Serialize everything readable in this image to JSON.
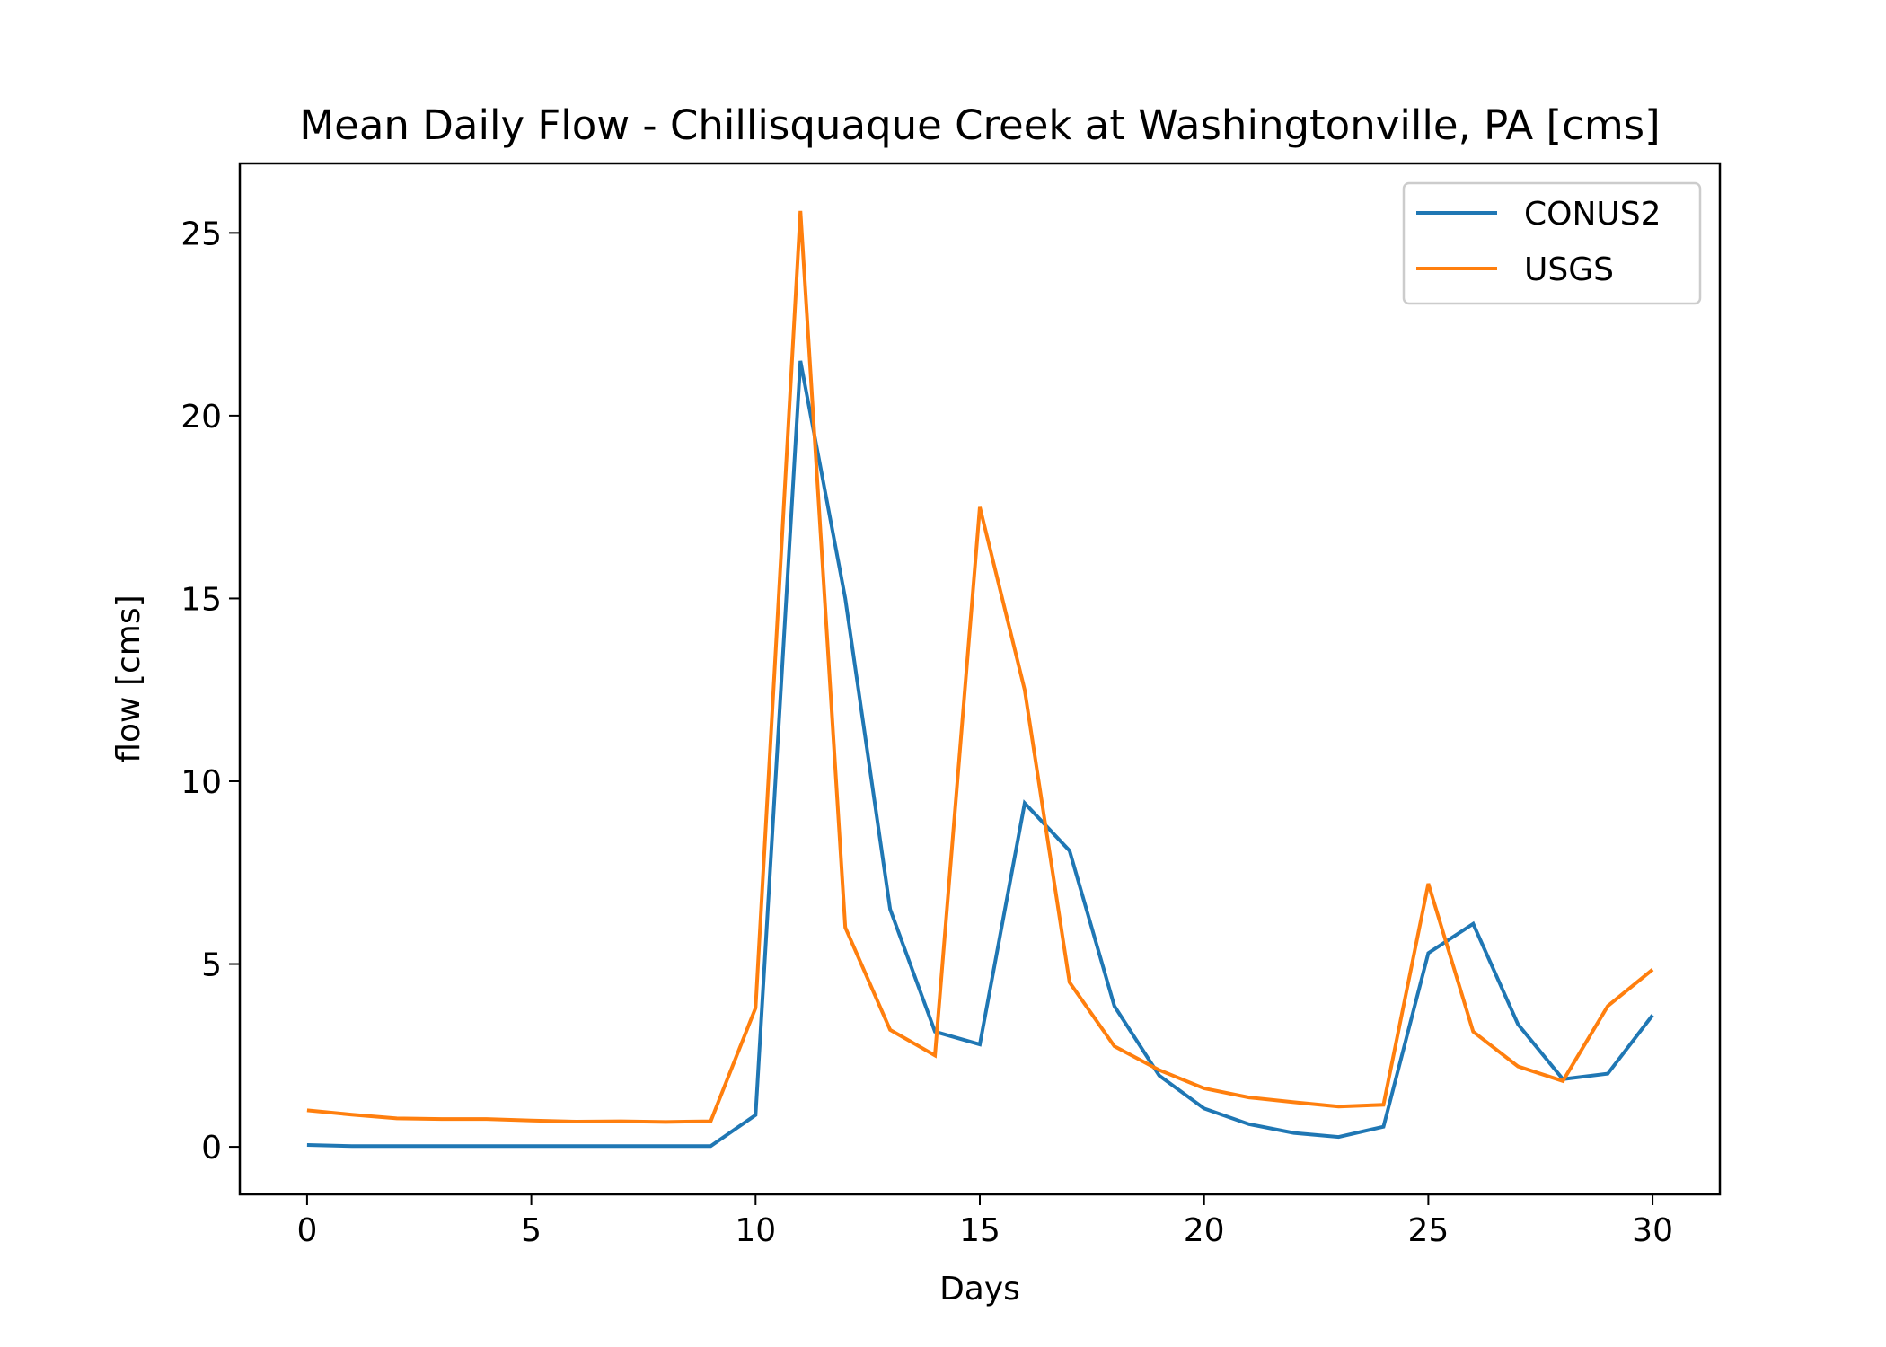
{
  "chart_data": {
    "type": "line",
    "title": "Mean Daily Flow - Chillisquaque Creek at Washingtonville, PA [cms]",
    "xlabel": "Days",
    "ylabel": "flow [cms]",
    "xlim": [
      -1.5,
      31.5
    ],
    "ylim": [
      -1.3,
      26.9
    ],
    "xticks": [
      0,
      5,
      10,
      15,
      20,
      25,
      30
    ],
    "yticks": [
      0,
      5,
      10,
      15,
      20,
      25
    ],
    "grid": false,
    "legend_position": "top-right",
    "x": [
      0,
      1,
      2,
      3,
      4,
      5,
      6,
      7,
      8,
      9,
      10,
      11,
      12,
      13,
      14,
      15,
      16,
      17,
      18,
      19,
      20,
      21,
      22,
      23,
      24,
      25,
      26,
      27,
      28,
      29,
      30
    ],
    "series": [
      {
        "name": "CONUS2",
        "color": "#1f77b4",
        "values": [
          0.05,
          0.02,
          0.02,
          0.02,
          0.02,
          0.02,
          0.02,
          0.02,
          0.02,
          0.02,
          0.87,
          21.5,
          15.0,
          6.5,
          3.15,
          2.8,
          9.4,
          8.1,
          3.85,
          1.95,
          1.05,
          0.62,
          0.38,
          0.27,
          0.55,
          5.3,
          6.1,
          3.35,
          1.85,
          2.0,
          3.6
        ]
      },
      {
        "name": "USGS",
        "color": "#ff7f0e",
        "values": [
          1.0,
          0.88,
          0.78,
          0.76,
          0.76,
          0.72,
          0.69,
          0.7,
          0.68,
          0.7,
          3.8,
          25.6,
          6.0,
          3.2,
          2.5,
          17.5,
          12.5,
          4.5,
          2.75,
          2.1,
          1.6,
          1.35,
          1.22,
          1.1,
          1.15,
          7.2,
          3.15,
          2.2,
          1.8,
          3.85,
          4.85
        ]
      }
    ]
  }
}
